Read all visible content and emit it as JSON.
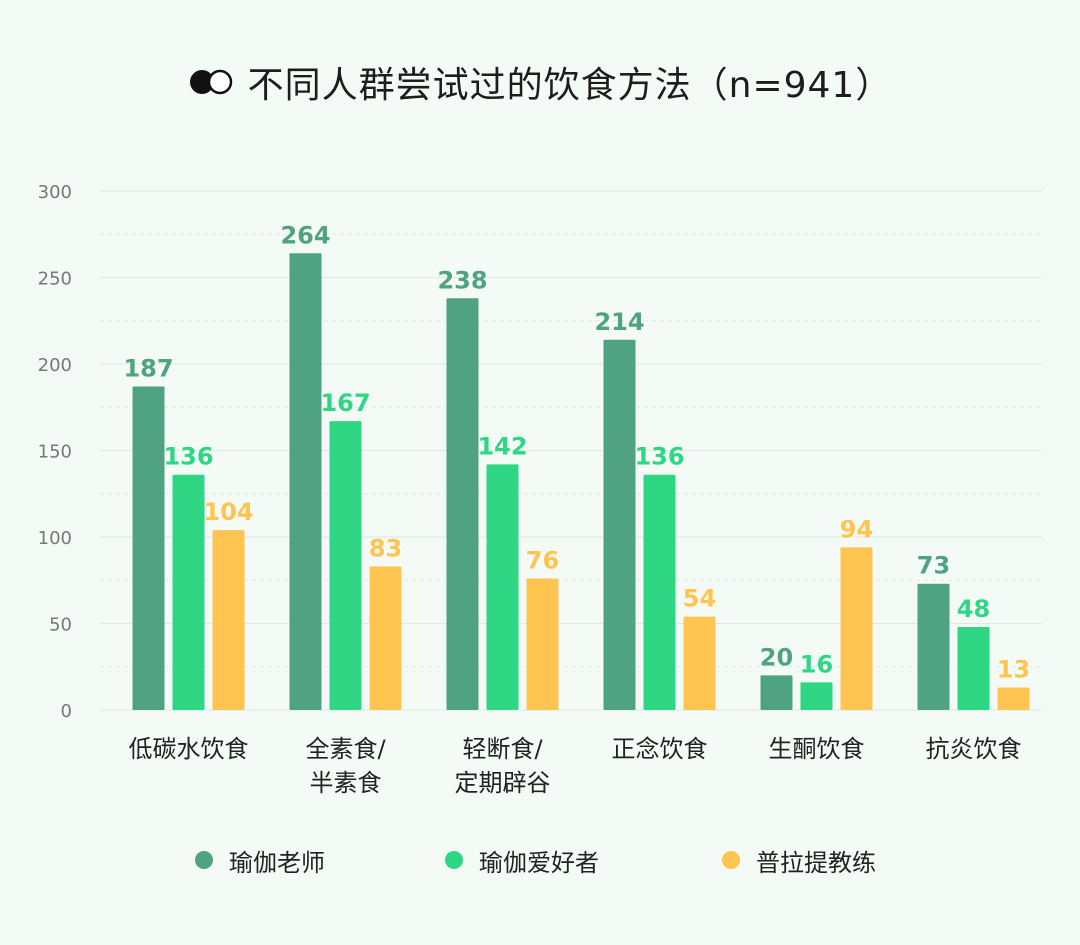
{
  "title": "不同人群尝试过的饮食方法（n=941）",
  "icon": "toggle-circles-icon",
  "colors": {
    "teacher": "#4fa383",
    "enthusiast": "#2fd684",
    "pilates": "#ffc550",
    "grid": "#dde9e2",
    "axis_text": "#777777"
  },
  "chart_data": {
    "type": "bar",
    "title": "不同人群尝试过的饮食方法（n=941）",
    "categories": [
      [
        "低碳水饮食"
      ],
      [
        "全素食/",
        "半素食"
      ],
      [
        "轻断食/",
        "定期辟谷"
      ],
      [
        "正念饮食"
      ],
      [
        "生酮饮食"
      ],
      [
        "抗炎饮食"
      ]
    ],
    "series": [
      {
        "name": "瑜伽老师",
        "values": [
          187,
          264,
          238,
          214,
          20,
          73
        ]
      },
      {
        "name": "瑜伽爱好者",
        "values": [
          136,
          167,
          142,
          136,
          16,
          48
        ]
      },
      {
        "name": "普拉提教练",
        "values": [
          104,
          83,
          76,
          54,
          94,
          13
        ]
      }
    ],
    "yticks": [
      "0",
      "50",
      "100",
      "150",
      "200",
      "250",
      "300"
    ],
    "ylim": [
      0,
      300
    ],
    "grid": true,
    "legend_position": "bottom"
  },
  "legend": {
    "items": [
      "瑜伽老师",
      "瑜伽爱好者",
      "普拉提教练"
    ]
  }
}
